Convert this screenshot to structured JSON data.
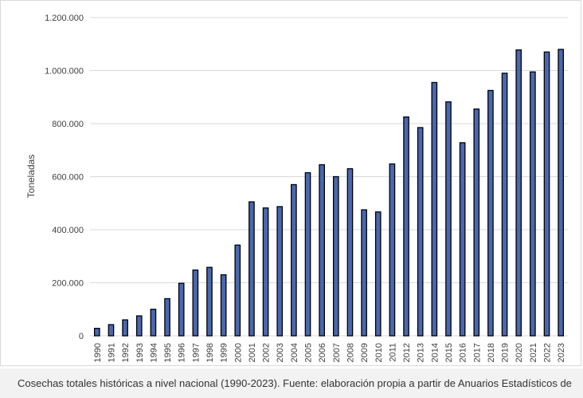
{
  "chart_data": {
    "type": "bar",
    "title": "",
    "xlabel": "",
    "ylabel": "Toneladas",
    "ylim": [
      0,
      1200000
    ],
    "yticks": [
      0,
      200000,
      400000,
      600000,
      800000,
      1000000,
      1200000
    ],
    "ytick_labels": [
      "0",
      "200.000",
      "400.000",
      "600.000",
      "800.000",
      "1.000.000",
      "1.200.000"
    ],
    "grid": "horizontal",
    "bar_color": "#4a67b0",
    "bar_edge_color": "#000000",
    "categories": [
      "1990",
      "1991",
      "1992",
      "1993",
      "1994",
      "1995",
      "1996",
      "1997",
      "1998",
      "1999",
      "2000",
      "2001",
      "2002",
      "2003",
      "2004",
      "2005",
      "2006",
      "2007",
      "2008",
      "2009",
      "2010",
      "2011",
      "2012",
      "2013",
      "2014",
      "2015",
      "2016",
      "2017",
      "2018",
      "2019",
      "2020",
      "2021",
      "2022",
      "2023"
    ],
    "values": [
      28000,
      42000,
      60000,
      75000,
      100000,
      140000,
      198000,
      248000,
      258000,
      230000,
      342000,
      505000,
      482000,
      487000,
      570000,
      615000,
      645000,
      600000,
      630000,
      475000,
      467000,
      648000,
      825000,
      785000,
      955000,
      882000,
      728000,
      855000,
      925000,
      990000,
      1078000,
      995000,
      1070000,
      1080000
    ]
  },
  "caption": {
    "text": "Cosechas totales históricas a nivel nacional (1990-2023). Fuente: elaboración propia a partir de Anuarios Estadísticos de"
  }
}
